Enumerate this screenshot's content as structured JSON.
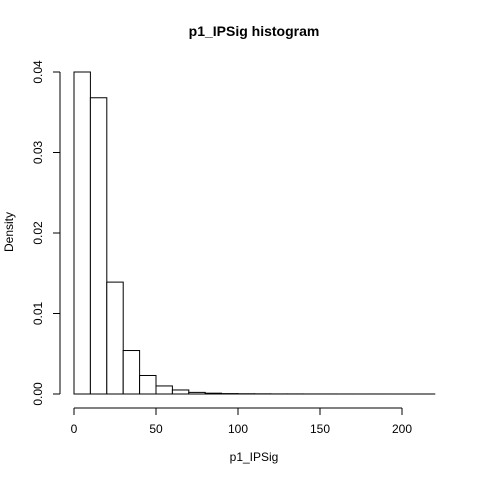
{
  "chart_data": {
    "type": "bar",
    "title": "p1_IPSig  histogram",
    "xlabel": "p1_IPSig",
    "ylabel": "Density",
    "bin_edges": [
      0,
      10,
      20,
      30,
      40,
      50,
      60,
      70,
      80,
      90,
      100,
      110,
      120,
      130,
      140,
      150,
      160,
      170,
      180,
      190,
      200,
      210,
      220
    ],
    "values": [
      0.04,
      0.0368,
      0.0139,
      0.0054,
      0.0023,
      0.001,
      0.0005,
      0.0002,
      0.0001,
      5e-05,
      3e-05,
      2e-05,
      1e-05,
      1e-05,
      5e-06,
      5e-06,
      3e-06,
      2e-06,
      2e-06,
      1e-06,
      1e-06,
      1e-06
    ],
    "xlim": [
      0,
      220
    ],
    "ylim": [
      0,
      0.04
    ],
    "x_ticks": [
      0,
      50,
      100,
      150,
      200
    ],
    "x_tick_labels": [
      "0",
      "50",
      "100",
      "150",
      "200"
    ],
    "y_ticks": [
      0,
      0.01,
      0.02,
      0.03,
      0.04
    ],
    "y_tick_labels": [
      "0.00",
      "0.01",
      "0.02",
      "0.03",
      "0.04"
    ],
    "grid": false,
    "bar_fill": "#ffffff",
    "bar_stroke": "#000000"
  }
}
